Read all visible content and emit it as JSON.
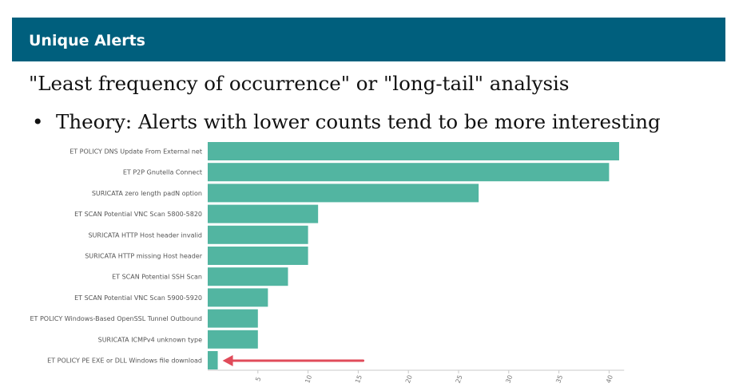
{
  "slide": {
    "title": "Unique Alerts",
    "heading": "\"Least frequency of occurrence\" or \"long-tail\" analysis",
    "bullet": "Theory: Alerts with lower counts tend to be more interesting"
  },
  "colors": {
    "header_bg": "#005f7d",
    "bar": "#52b5a1",
    "arrow": "#e04b5a"
  },
  "chart_data": {
    "type": "bar",
    "orientation": "horizontal",
    "categories": [
      "ET POLICY DNS Update From External net",
      "ET P2P Gnutella Connect",
      "SURICATA zero length padN option",
      "ET SCAN Potential VNC Scan 5800-5820",
      "SURICATA HTTP Host header invalid",
      "SURICATA HTTP missing Host header",
      "ET SCAN Potential SSH Scan",
      "ET SCAN Potential VNC Scan 5900-5920",
      "ET POLICY Windows-Based OpenSSL Tunnel Outbound",
      "SURICATA ICMPv4 unknown type",
      "ET POLICY PE EXE or DLL Windows file download"
    ],
    "values": [
      41,
      40,
      27,
      11,
      10,
      10,
      8,
      6,
      5,
      5,
      1
    ],
    "xticks": [
      "5",
      "10",
      "15",
      "20",
      "25",
      "30",
      "35",
      "40"
    ],
    "xlim": [
      0,
      41
    ],
    "annotation": "arrow pointing to ET POLICY PE EXE or DLL Windows file download"
  }
}
